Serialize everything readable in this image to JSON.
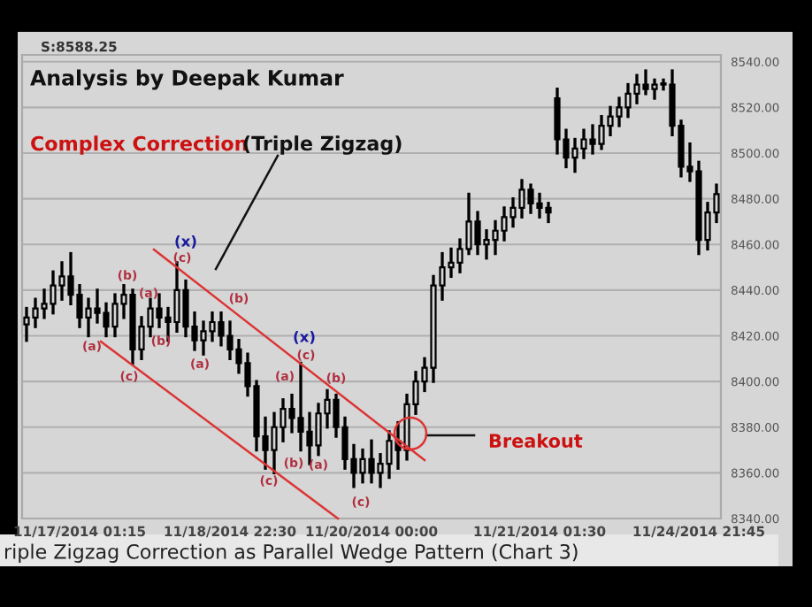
{
  "chart_data": {
    "type": "candlestick",
    "title": "Analysis by Deepak Kumar",
    "color": "#000000",
    "categories": [
      null,
      null,
      null,
      null,
      null,
      null,
      "11/17/2014 01:15",
      null,
      null,
      null,
      null,
      null,
      null,
      null,
      null,
      null,
      null,
      null,
      null,
      null,
      null,
      null,
      null,
      "11/18/2014 22:30",
      null,
      null,
      null,
      null,
      null,
      null,
      null,
      null,
      null,
      null,
      null,
      null,
      null,
      null,
      null,
      "11/20/2014 00:00",
      null,
      null,
      null,
      null,
      null,
      null,
      null,
      null,
      null,
      null,
      null,
      null,
      null,
      null,
      null,
      null,
      null,
      null,
      "11/21/2014 01:30",
      null,
      null,
      null,
      null,
      null,
      null,
      null,
      null,
      null,
      null,
      null,
      null,
      null,
      null,
      null,
      null,
      null,
      "11/24/2014 21:45",
      null,
      null
    ],
    "ohlc": [
      [
        8425,
        8432,
        8418,
        8428
      ],
      [
        8428,
        8436,
        8424,
        8432
      ],
      [
        8432,
        8440,
        8428,
        8434
      ],
      [
        8434,
        8448,
        8430,
        8442
      ],
      [
        8442,
        8452,
        8436,
        8446
      ],
      [
        8446,
        8456,
        8434,
        8438
      ],
      [
        8438,
        8442,
        8424,
        8428
      ],
      [
        8428,
        8436,
        8420,
        8432
      ],
      [
        8432,
        8440,
        8426,
        8430
      ],
      [
        8430,
        8434,
        8420,
        8424
      ],
      [
        8424,
        8438,
        8420,
        8434
      ],
      [
        8434,
        8442,
        8428,
        8438
      ],
      [
        8438,
        8440,
        8408,
        8414
      ],
      [
        8414,
        8428,
        8410,
        8424
      ],
      [
        8424,
        8436,
        8420,
        8432
      ],
      [
        8432,
        8438,
        8424,
        8428
      ],
      [
        8428,
        8432,
        8418,
        8426
      ],
      [
        8426,
        8452,
        8422,
        8440
      ],
      [
        8440,
        8444,
        8420,
        8424
      ],
      [
        8424,
        8430,
        8414,
        8418
      ],
      [
        8418,
        8426,
        8412,
        8422
      ],
      [
        8422,
        8430,
        8418,
        8426
      ],
      [
        8426,
        8430,
        8416,
        8420
      ],
      [
        8420,
        8426,
        8410,
        8414
      ],
      [
        8414,
        8418,
        8404,
        8408
      ],
      [
        8408,
        8412,
        8394,
        8398
      ],
      [
        8398,
        8400,
        8370,
        8376
      ],
      [
        8376,
        8384,
        8362,
        8370
      ],
      [
        8370,
        8386,
        8360,
        8380
      ],
      [
        8380,
        8392,
        8374,
        8388
      ],
      [
        8388,
        8394,
        8378,
        8384
      ],
      [
        8384,
        8408,
        8370,
        8378
      ],
      [
        8378,
        8386,
        8364,
        8372
      ],
      [
        8372,
        8390,
        8368,
        8386
      ],
      [
        8386,
        8396,
        8380,
        8392
      ],
      [
        8392,
        8394,
        8376,
        8380
      ],
      [
        8380,
        8384,
        8362,
        8366
      ],
      [
        8366,
        8372,
        8354,
        8360
      ],
      [
        8360,
        8370,
        8356,
        8366
      ],
      [
        8366,
        8374,
        8356,
        8360
      ],
      [
        8360,
        8368,
        8354,
        8364
      ],
      [
        8364,
        8378,
        8358,
        8374
      ],
      [
        8374,
        8382,
        8362,
        8370
      ],
      [
        8370,
        8394,
        8366,
        8390
      ],
      [
        8390,
        8404,
        8386,
        8400
      ],
      [
        8400,
        8410,
        8396,
        8406
      ],
      [
        8406,
        8446,
        8400,
        8442
      ],
      [
        8442,
        8456,
        8436,
        8450
      ],
      [
        8450,
        8458,
        8446,
        8452
      ],
      [
        8452,
        8462,
        8448,
        8458
      ],
      [
        8458,
        8482,
        8456,
        8470
      ],
      [
        8470,
        8474,
        8456,
        8460
      ],
      [
        8460,
        8466,
        8454,
        8462
      ],
      [
        8462,
        8470,
        8456,
        8466
      ],
      [
        8466,
        8476,
        8462,
        8472
      ],
      [
        8472,
        8480,
        8468,
        8476
      ],
      [
        8476,
        8488,
        8472,
        8484
      ],
      [
        8484,
        8486,
        8474,
        8478
      ],
      [
        8478,
        8482,
        8472,
        8476
      ],
      [
        8476,
        8478,
        8470,
        8474
      ],
      [
        8524,
        8528,
        8500,
        8506
      ],
      [
        8506,
        8510,
        8494,
        8498
      ],
      [
        8498,
        8506,
        8492,
        8502
      ],
      [
        8502,
        8510,
        8498,
        8506
      ],
      [
        8506,
        8512,
        8500,
        8504
      ],
      [
        8504,
        8516,
        8502,
        8512
      ],
      [
        8512,
        8520,
        8508,
        8516
      ],
      [
        8516,
        8524,
        8512,
        8520
      ],
      [
        8520,
        8530,
        8516,
        8526
      ],
      [
        8526,
        8534,
        8522,
        8530
      ],
      [
        8530,
        8536,
        8526,
        8528
      ],
      [
        8528,
        8532,
        8524,
        8530
      ],
      [
        8530,
        8532,
        8528,
        8530
      ],
      [
        8530,
        8536,
        8508,
        8512
      ],
      [
        8512,
        8514,
        8490,
        8494
      ],
      [
        8494,
        8504,
        8488,
        8492
      ],
      [
        8492,
        8496,
        8456,
        8462
      ],
      [
        8462,
        8478,
        8458,
        8474
      ],
      [
        8474,
        8486,
        8470,
        8482
      ]
    ],
    "ylim": [
      8340,
      8543
    ],
    "yticks": [
      {
        "value": 8340,
        "label": "8340.00"
      },
      {
        "value": 8360,
        "label": "8360.00"
      },
      {
        "value": 8380,
        "label": "8380.00"
      },
      {
        "value": 8400,
        "label": "8400.00"
      },
      {
        "value": 8420,
        "label": "8420.00"
      },
      {
        "value": 8440,
        "label": "8440.00"
      },
      {
        "value": 8460,
        "label": "8460.00"
      },
      {
        "value": 8480,
        "label": "8480.00"
      },
      {
        "value": 8500,
        "label": "8500.00"
      },
      {
        "value": 8520,
        "label": "8520.00"
      },
      {
        "value": 8540,
        "label": "8540.00"
      }
    ],
    "grid": "y",
    "annotations": [
      "S:8588.25",
      "Complex Correction",
      "(Triple Zigzag)",
      "Breakout",
      "riple Zigzag Correction as Parallel Wedge Pattern (Chart 3)",
      "(b)",
      "(a)",
      "(c)",
      "(a)",
      "(b)",
      "(x)",
      "(c)",
      "(b)",
      "(a)",
      "(x)",
      "(c)",
      "(b)",
      "(a)",
      "(b)",
      "(a)",
      "(c)",
      "(c)"
    ]
  }
}
